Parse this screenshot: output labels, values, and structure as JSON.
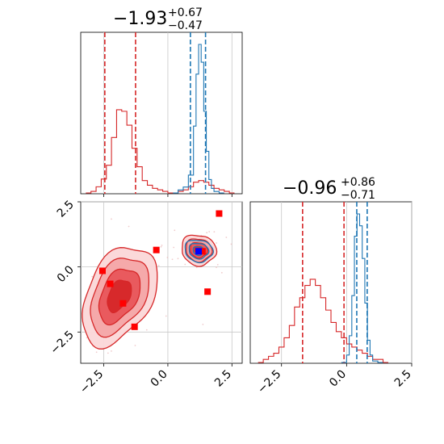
{
  "colors": {
    "red": "#d62728",
    "red_light": "#f4a6a8",
    "red_mid": "#e8555a",
    "blue": "#1f77b4",
    "marker": "#ff0000",
    "marker_blue": "#0000ff",
    "grid": "#c8c8c8"
  },
  "chart_data": [
    {
      "type": "histogram",
      "panel": "top-left",
      "title": {
        "value": "−1.93",
        "upper": "+0.67",
        "lower": "−0.47"
      },
      "xlim": [
        -3.4,
        2.9
      ],
      "grid": true,
      "ticks_visible": [
        -2.5,
        0.0,
        2.5
      ],
      "series": [
        {
          "color": "red",
          "bins_x": [
            -3.2,
            -3.0,
            -2.8,
            -2.6,
            -2.4,
            -2.2,
            -2.0,
            -1.8,
            -1.6,
            -1.4,
            -1.2,
            -1.0,
            -0.8,
            -0.6,
            -0.4,
            -0.2,
            0.0,
            0.2,
            0.4,
            0.6,
            0.8,
            1.0,
            1.2,
            1.4,
            1.6,
            1.8,
            2.0,
            2.2,
            2.4
          ],
          "counts": [
            0.0,
            0.01,
            0.04,
            0.09,
            0.18,
            0.36,
            0.54,
            0.53,
            0.44,
            0.29,
            0.17,
            0.08,
            0.05,
            0.03,
            0.02,
            0.01,
            0.0,
            0.0,
            0.01,
            0.02,
            0.04,
            0.07,
            0.08,
            0.07,
            0.05,
            0.03,
            0.02,
            0.01,
            0.0
          ],
          "quantiles": [
            -2.46,
            -1.26
          ]
        },
        {
          "color": "blue",
          "bins_x": [
            0.2,
            0.4,
            0.6,
            0.8,
            1.0,
            1.1,
            1.2,
            1.3,
            1.4,
            1.5,
            1.6,
            1.7,
            1.8,
            2.0
          ],
          "counts": [
            0.0,
            0.02,
            0.04,
            0.12,
            0.45,
            0.8,
            1.0,
            0.88,
            0.55,
            0.28,
            0.09,
            0.03,
            0.01,
            0.0
          ],
          "quantiles": [
            0.88,
            1.47
          ]
        }
      ]
    },
    {
      "type": "histogram",
      "panel": "bottom-right",
      "title": {
        "value": "−0.96",
        "upper": "+0.86",
        "lower": "−0.71"
      },
      "xlim": [
        -3.7,
        2.5
      ],
      "grid": true,
      "ticks": [
        -2.5,
        0.0,
        2.5
      ],
      "tick_labels": [
        "−2.5",
        "0.0",
        "2.5"
      ],
      "series": [
        {
          "color": "red",
          "bins_x": [
            -3.4,
            -3.2,
            -3.0,
            -2.8,
            -2.6,
            -2.4,
            -2.2,
            -2.0,
            -1.8,
            -1.6,
            -1.4,
            -1.2,
            -1.0,
            -0.8,
            -0.6,
            -0.4,
            -0.2,
            0.0,
            0.2,
            0.4,
            0.6,
            0.8,
            1.0,
            1.2,
            1.4
          ],
          "counts": [
            0.0,
            0.01,
            0.02,
            0.03,
            0.05,
            0.08,
            0.12,
            0.18,
            0.21,
            0.25,
            0.27,
            0.25,
            0.21,
            0.17,
            0.13,
            0.1,
            0.08,
            0.06,
            0.05,
            0.04,
            0.03,
            0.02,
            0.01,
            0.01,
            0.0
          ],
          "quantiles": [
            -1.69,
            -0.1
          ]
        },
        {
          "color": "blue",
          "bins_x": [
            -0.2,
            0.0,
            0.1,
            0.2,
            0.3,
            0.4,
            0.5,
            0.6,
            0.7,
            0.8,
            0.9,
            1.0,
            1.2
          ],
          "counts": [
            0.0,
            0.05,
            0.18,
            0.45,
            0.85,
            1.0,
            0.92,
            0.7,
            0.4,
            0.15,
            0.05,
            0.01,
            0.0
          ],
          "quantiles": [
            0.39,
            0.79
          ]
        }
      ]
    },
    {
      "type": "scatter",
      "panel": "bottom-left",
      "xlim": [
        -3.4,
        2.9
      ],
      "ylim": [
        -3.7,
        2.5
      ],
      "grid": true,
      "xticks": [
        -2.5,
        0.0,
        2.5
      ],
      "xtick_labels": [
        "−2.5",
        "0.0",
        "2.5"
      ],
      "yticks": [
        2.5,
        0.0,
        -2.5
      ],
      "ytick_labels": [
        "2.5",
        "0.0",
        "−2.5"
      ],
      "contours": [
        {
          "color": "red",
          "center": [
            -1.9,
            -1.1
          ],
          "rx": 1.25,
          "ry": 2.05,
          "angle": -28,
          "levels": [
            1.0,
            0.78,
            0.55,
            0.32
          ]
        },
        {
          "color": "red",
          "center": [
            1.2,
            0.65
          ],
          "rx": 0.68,
          "ry": 0.58,
          "angle": -15,
          "levels": [
            1.0,
            0.75,
            0.5,
            0.25
          ]
        },
        {
          "color": "blue",
          "center": [
            1.2,
            0.62
          ],
          "rx": 0.55,
          "ry": 0.42,
          "angle": -10,
          "levels": [
            1.0,
            0.7,
            0.4
          ]
        }
      ],
      "markers": [
        {
          "x": 2.0,
          "y": 2.05,
          "color": "marker"
        },
        {
          "x": -0.45,
          "y": 0.65,
          "color": "marker"
        },
        {
          "x": -2.55,
          "y": -0.15,
          "color": "marker"
        },
        {
          "x": -2.25,
          "y": -0.65,
          "color": "marker"
        },
        {
          "x": -1.75,
          "y": -1.4,
          "color": "marker"
        },
        {
          "x": -1.3,
          "y": -2.3,
          "color": "marker"
        },
        {
          "x": 1.55,
          "y": -0.95,
          "color": "marker"
        },
        {
          "x": 1.35,
          "y": 0.6,
          "color": "marker"
        },
        {
          "x": 1.2,
          "y": 0.6,
          "color": "marker_blue"
        }
      ]
    }
  ]
}
